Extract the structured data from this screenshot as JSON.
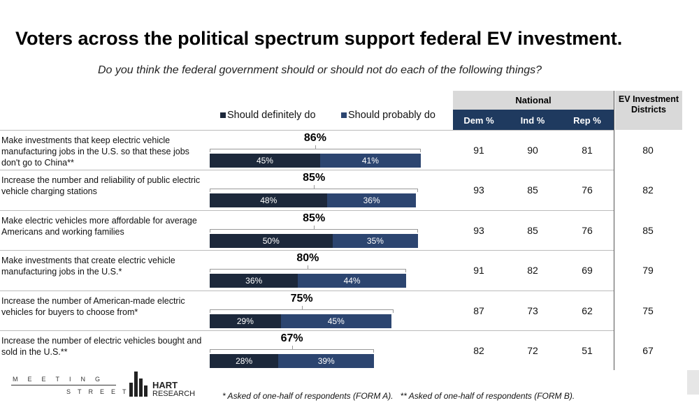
{
  "title": "Voters across the political spectrum support federal EV investment.",
  "subtitle": "Do you think the federal government should or should not do each of the following things?",
  "chart_data": {
    "type": "bar",
    "orientation": "horizontal",
    "stacked": true,
    "categories": [
      "Make investments that keep electric vehicle manufacturing jobs in the U.S. so that these jobs don't go to China**",
      "Increase the number and reliability of public electric vehicle charging stations",
      "Make electric vehicles more affordable for average Americans and working families",
      "Make investments that create electric vehicle manufacturing jobs in the U.S.*",
      "Increase the number of American-made electric vehicles for buyers to choose from*",
      "Increase the number of electric vehicles bought and sold in the U.S.**"
    ],
    "series": [
      {
        "name": "Should definitely do",
        "color": "#1c283b",
        "values": [
          45,
          48,
          50,
          36,
          29,
          28
        ],
        "value_labels": [
          "45%",
          "48%",
          "50%",
          "36%",
          "29%",
          "28%"
        ]
      },
      {
        "name": "Should probably do",
        "color": "#2c4570",
        "values": [
          41,
          36,
          35,
          44,
          45,
          39
        ],
        "value_labels": [
          "41%",
          "36%",
          "35%",
          "44%",
          "45%",
          "39%"
        ]
      }
    ],
    "totals": {
      "values": [
        86,
        85,
        85,
        80,
        75,
        67
      ],
      "value_labels": [
        "86%",
        "85%",
        "85%",
        "80%",
        "75%",
        "67%"
      ]
    }
  },
  "table": {
    "group": "National",
    "columns": [
      "Dem %",
      "Ind %",
      "Rep %"
    ],
    "extra_column": "EV Investment Districts",
    "rows": [
      [
        91,
        90,
        81,
        80
      ],
      [
        93,
        85,
        76,
        82
      ],
      [
        93,
        85,
        76,
        85
      ],
      [
        91,
        82,
        69,
        79
      ],
      [
        87,
        73,
        62,
        75
      ],
      [
        82,
        72,
        51,
        67
      ]
    ]
  },
  "footnote": "* Asked of one-half of respondents (FORM A).   ** Asked of one-half of respondents (FORM B).",
  "logos": {
    "left_top": "MEETING",
    "left_bottom": "STREET",
    "right_top": "HART",
    "right_bottom": "RESEARCH"
  }
}
